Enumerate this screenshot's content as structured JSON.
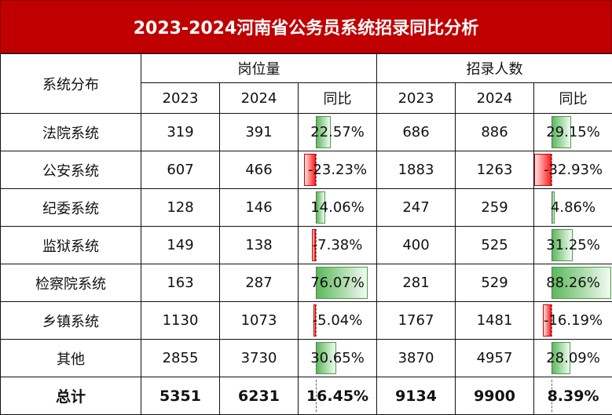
{
  "title": "2023-2024河南省公务员系统招录同比分析",
  "header": {
    "system_label": "系统分布",
    "group_positions": "岗位量",
    "group_hires": "招录人数",
    "y2023": "2023",
    "y2024": "2024",
    "yoy": "同比"
  },
  "colors": {
    "title_bg": "#c00000",
    "positive_bar": "#5cb85c",
    "negative_bar": "#ff2020"
  },
  "rows": [
    {
      "name": "法院系统",
      "pos_2023": "319",
      "pos_2024": "391",
      "pos_yoy": "22.57%",
      "pos_yoy_value": 22.57,
      "hire_2023": "686",
      "hire_2024": "886",
      "hire_yoy": "29.15%",
      "hire_yoy_value": 29.15
    },
    {
      "name": "公安系统",
      "pos_2023": "607",
      "pos_2024": "466",
      "pos_yoy": "-23.23%",
      "pos_yoy_value": -23.23,
      "hire_2023": "1883",
      "hire_2024": "1263",
      "hire_yoy": "-32.93%",
      "hire_yoy_value": -32.93
    },
    {
      "name": "纪委系统",
      "pos_2023": "128",
      "pos_2024": "146",
      "pos_yoy": "14.06%",
      "pos_yoy_value": 14.06,
      "hire_2023": "247",
      "hire_2024": "259",
      "hire_yoy": "4.86%",
      "hire_yoy_value": 4.86
    },
    {
      "name": "监狱系统",
      "pos_2023": "149",
      "pos_2024": "138",
      "pos_yoy": "-7.38%",
      "pos_yoy_value": -7.38,
      "hire_2023": "400",
      "hire_2024": "525",
      "hire_yoy": "31.25%",
      "hire_yoy_value": 31.25
    },
    {
      "name": "检察院系统",
      "pos_2023": "163",
      "pos_2024": "287",
      "pos_yoy": "76.07%",
      "pos_yoy_value": 76.07,
      "hire_2023": "281",
      "hire_2024": "529",
      "hire_yoy": "88.26%",
      "hire_yoy_value": 88.26
    },
    {
      "name": "乡镇系统",
      "pos_2023": "1130",
      "pos_2024": "1073",
      "pos_yoy": "-5.04%",
      "pos_yoy_value": -5.04,
      "hire_2023": "1767",
      "hire_2024": "1481",
      "hire_yoy": "-16.19%",
      "hire_yoy_value": -16.19
    },
    {
      "name": "其他",
      "pos_2023": "2855",
      "pos_2024": "3730",
      "pos_yoy": "30.65%",
      "pos_yoy_value": 30.65,
      "hire_2023": "3870",
      "hire_2024": "4957",
      "hire_yoy": "28.09%",
      "hire_yoy_value": 28.09
    }
  ],
  "total": {
    "name": "总计",
    "pos_2023": "5351",
    "pos_2024": "6231",
    "pos_yoy": "16.45%",
    "hire_2023": "9134",
    "hire_2024": "9900",
    "hire_yoy": "8.39%"
  }
}
